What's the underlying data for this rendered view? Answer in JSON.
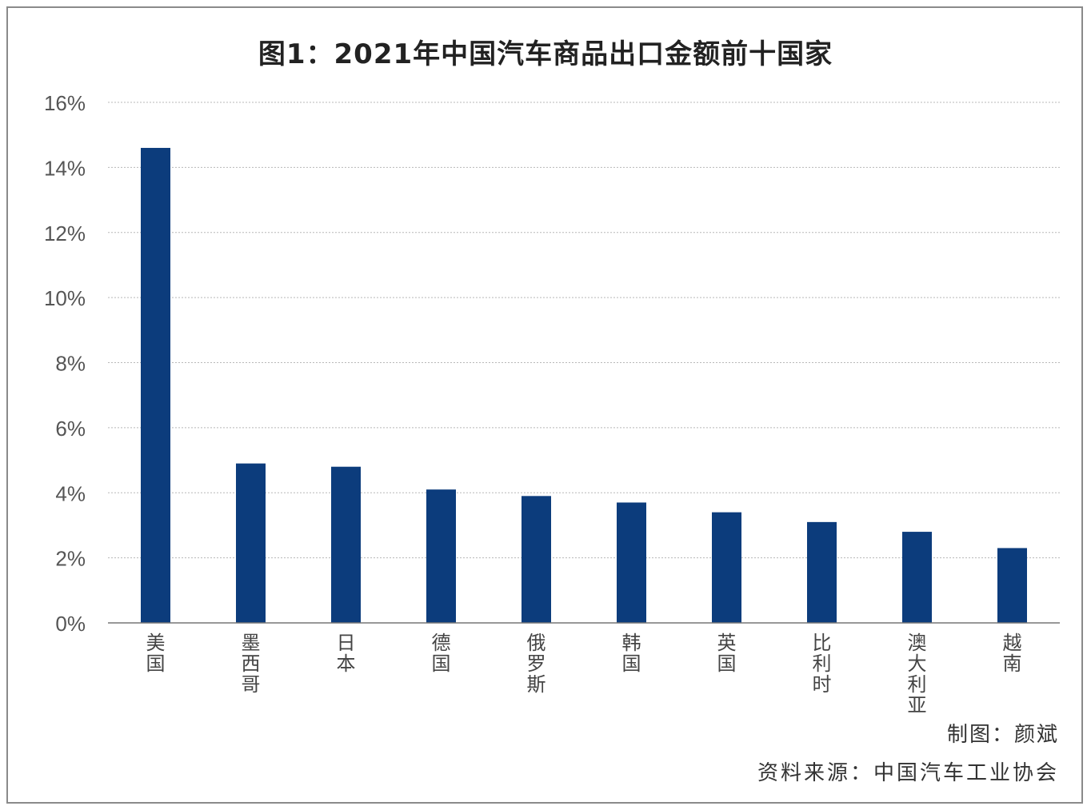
{
  "chart_data": {
    "type": "bar",
    "title": "图1：2021年中国汽车商品出口金额前十国家",
    "categories": [
      "美国",
      "墨西哥",
      "日本",
      "德国",
      "俄罗斯",
      "韩国",
      "英国",
      "比利时",
      "澳大利亚",
      "越南"
    ],
    "values": [
      14.6,
      4.9,
      4.8,
      4.1,
      3.9,
      3.7,
      3.4,
      3.1,
      2.8,
      2.3
    ],
    "unit": "%",
    "ylim": [
      0,
      16
    ],
    "yticks": [
      "0%",
      "2%",
      "4%",
      "6%",
      "8%",
      "10%",
      "12%",
      "14%",
      "16%"
    ],
    "grid": true,
    "bar_color": "#0c3c7c"
  },
  "credits": {
    "maker": "制图：颜斌",
    "source": "资料来源：中国汽车工业协会"
  }
}
